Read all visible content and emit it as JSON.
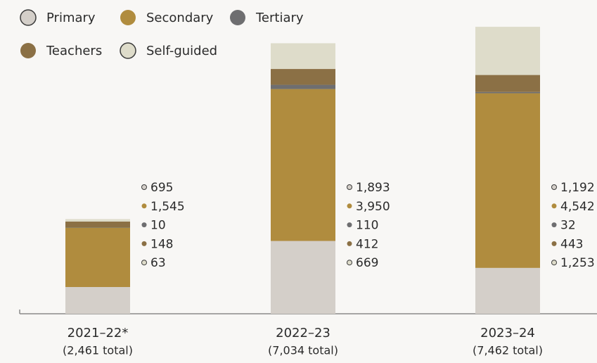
{
  "chart_data": {
    "type": "stacked_bar",
    "categories": [
      "2021–22*",
      "2022–23",
      "2023–24"
    ],
    "category_notes": [
      "(2,461 total)",
      "(7,034 total)",
      "(7,462 total)"
    ],
    "ylim": [
      0,
      7500
    ],
    "series": [
      {
        "name": "Primary",
        "color": "#d4cfc9",
        "values": [
          695,
          1893,
          1192
        ],
        "value_labels": [
          "695",
          "1,893",
          "1,192"
        ]
      },
      {
        "name": "Secondary",
        "color": "#b08c3e",
        "values": [
          1545,
          3950,
          4542
        ],
        "value_labels": [
          "1,545",
          "3,950",
          "4,542"
        ]
      },
      {
        "name": "Tertiary",
        "color": "#6e6e70",
        "values": [
          10,
          110,
          32
        ],
        "value_labels": [
          "10",
          "110",
          "32"
        ]
      },
      {
        "name": "Teachers",
        "color": "#8b7045",
        "values": [
          148,
          412,
          443
        ],
        "value_labels": [
          "148",
          "412",
          "443"
        ]
      },
      {
        "name": "Self-guided",
        "color": "#dedcca",
        "values": [
          63,
          669,
          1253
        ],
        "value_labels": [
          "63",
          "669",
          "1,253"
        ]
      }
    ]
  }
}
